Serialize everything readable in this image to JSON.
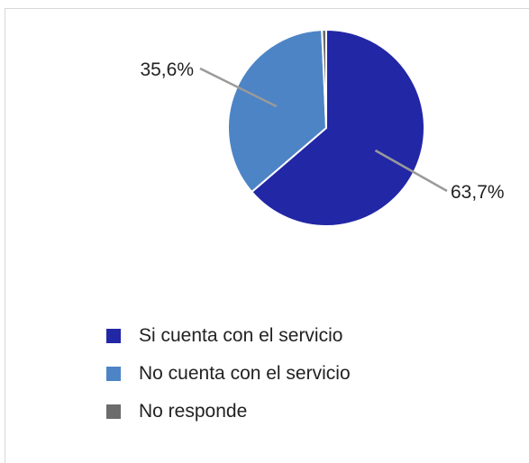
{
  "chart_data": {
    "type": "pie",
    "slices": [
      {
        "label": "Si cuenta con el servicio",
        "value": 63.7,
        "value_label": "63,7%",
        "color": "#2227a6"
      },
      {
        "label": "No cuenta con el servicio",
        "value": 35.6,
        "value_label": "35,6%",
        "color": "#4d84c6"
      },
      {
        "label": "No responde",
        "value": 0.7,
        "value_label": "",
        "color": "#6c6c6c"
      }
    ],
    "legend_position": "bottom-left",
    "start_angle": "12 o'clock, clockwise"
  }
}
